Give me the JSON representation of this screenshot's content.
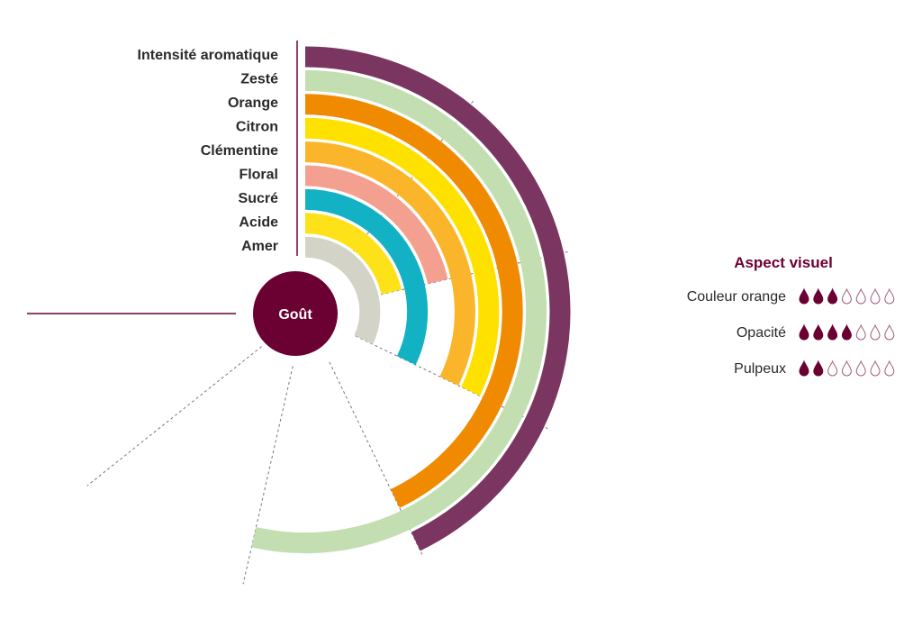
{
  "chart_data": {
    "type": "radial-bar",
    "center_label": "Goût",
    "scale_max": 7,
    "grid": "dashed radial lines",
    "categories": [
      "Intensité aromatique",
      "Zesté",
      "Orange",
      "Citron",
      "Clémentine",
      "Floral",
      "Sucré",
      "Acide",
      "Amer"
    ],
    "values": [
      4,
      5,
      4,
      3,
      3,
      2,
      3,
      2,
      3
    ],
    "colors": [
      "#7b3561",
      "#c3deb0",
      "#f08a00",
      "#ffe100",
      "#fbb52a",
      "#f4a090",
      "#12b2c4",
      "#fde21a",
      "#d3d3c7"
    ],
    "center_color": "#6b0033"
  },
  "aspect_visuel": {
    "title": "Aspect visuel",
    "max": 7,
    "accent": "#6b0033",
    "items": [
      {
        "label": "Couleur orange",
        "value": 3
      },
      {
        "label": "Opacité",
        "value": 4
      },
      {
        "label": "Pulpeux",
        "value": 2
      }
    ]
  }
}
